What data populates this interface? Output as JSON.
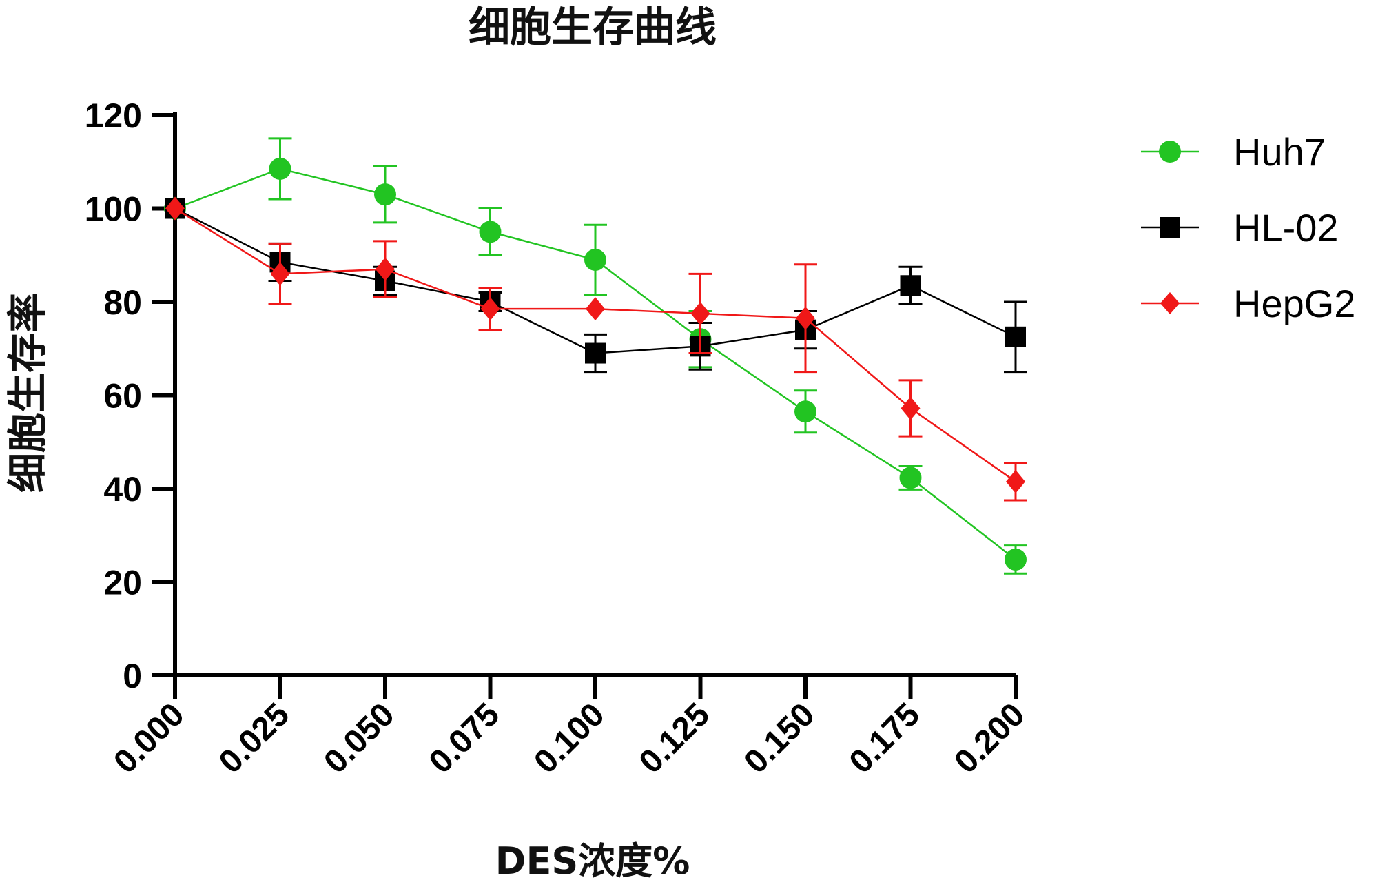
{
  "chart_data": {
    "type": "line",
    "title": "细胞生存曲线",
    "xlabel": "DES浓度%",
    "ylabel": "细胞生存率",
    "x": [
      "0.000",
      "0.025",
      "0.050",
      "0.075",
      "0.100",
      "0.125",
      "0.150",
      "0.175",
      "0.200"
    ],
    "ylim": [
      0,
      120
    ],
    "yticks": [
      0,
      20,
      40,
      60,
      80,
      100,
      120
    ],
    "legend_position": "top-right",
    "grid": false,
    "series": [
      {
        "name": "Huh7",
        "color": "#22c422",
        "marker": "circle",
        "values": [
          100,
          108.5,
          103,
          95,
          89,
          72,
          56.5,
          42.3,
          24.8
        ],
        "errors": [
          0,
          6.5,
          6,
          5,
          7.5,
          6,
          4.5,
          2.5,
          3
        ]
      },
      {
        "name": "HL-02",
        "color": "#000000",
        "marker": "square",
        "values": [
          100,
          88.5,
          84.5,
          80,
          69,
          70.5,
          74,
          83.5,
          72.5
        ],
        "errors": [
          0,
          4,
          3,
          2,
          4,
          5,
          4,
          4,
          7.5
        ]
      },
      {
        "name": "HepG2",
        "color": "#f01818",
        "marker": "diamond",
        "values": [
          100,
          86,
          87,
          78.5,
          78.5,
          77.5,
          76.5,
          57.2,
          41.5
        ],
        "errors": [
          0,
          6.5,
          6,
          4.5,
          0,
          8.5,
          11.5,
          6,
          4
        ]
      }
    ]
  }
}
